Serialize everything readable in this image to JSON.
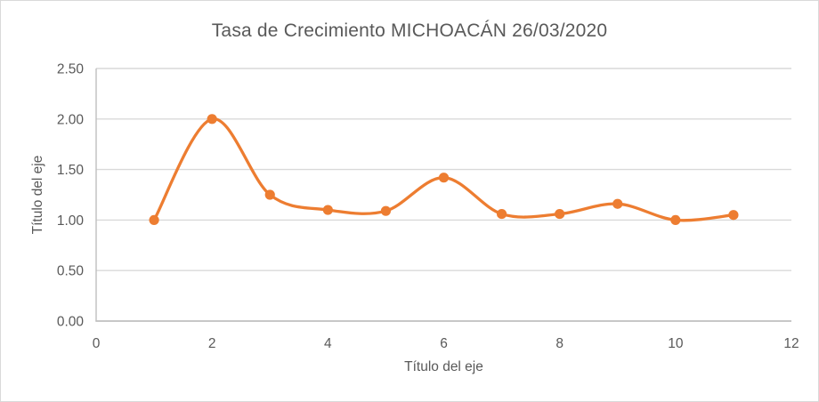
{
  "page": {
    "background": "#FFFFFF",
    "border_color": "#D9D9D9"
  },
  "chart_data": {
    "type": "line",
    "title": "Tasa de Crecimiento MICHOACÁN 26/03/2020",
    "xlabel": "Título del eje",
    "ylabel": "Título del eje",
    "x": [
      1,
      2,
      3,
      4,
      5,
      6,
      7,
      8,
      9,
      10,
      11
    ],
    "values": [
      1.0,
      2.0,
      1.25,
      1.1,
      1.09,
      1.42,
      1.06,
      1.06,
      1.16,
      1.0,
      1.05
    ],
    "xlim": [
      0,
      12
    ],
    "ylim": [
      0,
      2.5
    ],
    "x_ticks": [
      0,
      2,
      4,
      6,
      8,
      10,
      12
    ],
    "y_ticks": [
      0,
      0.5,
      1,
      1.5,
      2,
      2.5
    ],
    "y_tick_decimals": 2,
    "grid": "horizontal-only",
    "legend": "none",
    "line_style": "smooth",
    "marker": "circle",
    "colors": {
      "series": "#ED7D31",
      "text": "#595959",
      "gridline": "#D9D9D9",
      "axis": "#BFBFBF",
      "background": "#FFFFFF"
    }
  }
}
